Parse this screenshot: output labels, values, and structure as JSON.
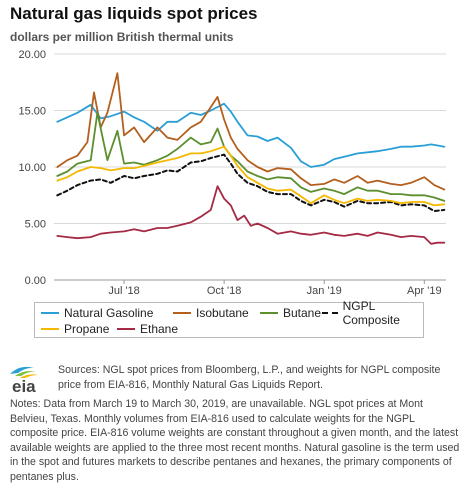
{
  "page": {
    "title": "Natural gas liquids spot prices",
    "subtitle": "dollars per million British thermal units",
    "sources": "Sources: NGL spot prices from Bloomberg, L.P., and weights for NGPL composite price from EIA-816, Monthly Natural Gas Liquids Report.",
    "notes": "Notes: Data from March 19 to March 30, 2019, are unavailable. NGL spot prices at Mont Belvieu, Texas. Monthly volumes from EIA-816 used to calculate weights for the NGPL composite price. EIA-816 volume weights are constant throughout a given month, and the latest available weights are applied to the three most recent months. Natural gasoline is the term used in the spot and futures markets to describe pentanes and hexanes, the primary components of pentanes plus.",
    "logo_text": "eia"
  },
  "chart_data": {
    "type": "line",
    "x_ticks": [
      "Jul '18",
      "Oct '18",
      "Jan '19",
      "Apr '19"
    ],
    "x_tick_months": [
      3,
      6,
      9,
      12
    ],
    "y_ticks": [
      "0.00",
      "5.00",
      "10.00",
      "15.00",
      "20.00"
    ],
    "ylim": [
      0,
      20
    ],
    "grid": "horizontal",
    "legend_position": "bottom",
    "x_month_range": [
      0.9,
      12.65
    ],
    "series": [
      {
        "name": "Natural Gasoline",
        "color": "#2a9fd6",
        "dashed": false,
        "x": [
          1.0,
          1.3,
          1.6,
          2.0,
          2.3,
          2.6,
          3.0,
          3.3,
          3.6,
          4.0,
          4.3,
          4.6,
          5.0,
          5.3,
          5.6,
          6.0,
          6.2,
          6.4,
          6.7,
          7.0,
          7.3,
          7.6,
          8.0,
          8.3,
          8.6,
          9.0,
          9.3,
          9.6,
          10.0,
          10.3,
          10.6,
          11.0,
          11.3,
          11.6,
          12.0,
          12.2,
          12.4,
          12.6
        ],
        "y": [
          14.0,
          14.4,
          14.8,
          15.5,
          14.3,
          14.5,
          14.9,
          14.4,
          14.0,
          13.2,
          14.0,
          14.0,
          14.8,
          14.6,
          15.0,
          15.6,
          14.9,
          14.0,
          12.8,
          12.7,
          12.3,
          12.6,
          11.7,
          10.5,
          10.0,
          10.2,
          10.7,
          10.9,
          11.2,
          11.3,
          11.4,
          11.6,
          11.8,
          11.8,
          11.9,
          12.0,
          11.9,
          11.8
        ]
      },
      {
        "name": "Isobutane",
        "color": "#b35f1e",
        "dashed": false,
        "x": [
          1.0,
          1.3,
          1.6,
          1.9,
          2.1,
          2.3,
          2.5,
          2.8,
          3.0,
          3.3,
          3.6,
          4.0,
          4.3,
          4.6,
          5.0,
          5.3,
          5.6,
          5.8,
          6.0,
          6.2,
          6.4,
          6.7,
          7.0,
          7.3,
          7.6,
          8.0,
          8.3,
          8.6,
          9.0,
          9.3,
          9.6,
          10.0,
          10.3,
          10.6,
          11.0,
          11.3,
          11.6,
          12.0,
          12.3,
          12.6
        ],
        "y": [
          10.0,
          10.6,
          11.0,
          12.2,
          16.6,
          13.5,
          14.8,
          18.3,
          12.8,
          13.5,
          12.2,
          13.5,
          12.6,
          12.4,
          13.5,
          14.0,
          15.3,
          16.2,
          14.2,
          12.6,
          11.6,
          10.6,
          10.0,
          9.6,
          9.9,
          9.8,
          9.0,
          8.4,
          8.5,
          8.9,
          8.6,
          9.2,
          8.6,
          8.8,
          8.5,
          8.4,
          8.6,
          9.1,
          8.4,
          8.0
        ]
      },
      {
        "name": "Butane",
        "color": "#5c8f2e",
        "dashed": false,
        "x": [
          1.0,
          1.3,
          1.6,
          2.0,
          2.2,
          2.5,
          2.8,
          3.0,
          3.3,
          3.6,
          4.0,
          4.3,
          4.6,
          5.0,
          5.3,
          5.6,
          5.8,
          6.0,
          6.2,
          6.4,
          6.7,
          7.0,
          7.3,
          7.6,
          8.0,
          8.3,
          8.6,
          9.0,
          9.3,
          9.6,
          10.0,
          10.3,
          10.6,
          11.0,
          11.3,
          11.6,
          12.0,
          12.3,
          12.6
        ],
        "y": [
          9.2,
          9.6,
          10.3,
          10.6,
          14.8,
          10.6,
          13.2,
          10.3,
          10.4,
          10.2,
          10.6,
          11.0,
          11.6,
          12.6,
          12.0,
          12.2,
          13.4,
          11.8,
          11.0,
          10.5,
          9.6,
          9.2,
          8.9,
          9.1,
          9.0,
          8.2,
          7.8,
          8.1,
          7.9,
          7.6,
          8.2,
          7.9,
          7.9,
          7.6,
          7.6,
          7.5,
          7.5,
          7.3,
          7.0
        ]
      },
      {
        "name": "NGPL Composite",
        "color": "#111111",
        "dashed": true,
        "x": [
          1.0,
          1.3,
          1.6,
          2.0,
          2.3,
          2.6,
          3.0,
          3.3,
          3.6,
          4.0,
          4.3,
          4.6,
          5.0,
          5.3,
          5.6,
          6.0,
          6.2,
          6.4,
          6.7,
          7.0,
          7.3,
          7.6,
          8.0,
          8.3,
          8.6,
          9.0,
          9.3,
          9.6,
          10.0,
          10.3,
          10.6,
          11.0,
          11.3,
          11.6,
          12.0,
          12.3,
          12.6
        ],
        "y": [
          7.5,
          7.9,
          8.4,
          8.8,
          8.9,
          8.6,
          9.2,
          9.0,
          9.2,
          9.4,
          9.7,
          9.6,
          10.4,
          10.5,
          10.8,
          11.1,
          10.3,
          9.4,
          8.6,
          8.3,
          7.8,
          7.6,
          7.6,
          7.0,
          6.6,
          7.1,
          6.9,
          6.5,
          7.0,
          6.8,
          6.8,
          6.9,
          6.6,
          6.7,
          6.6,
          6.1,
          6.2
        ]
      },
      {
        "name": "Propane",
        "color": "#f5b800",
        "dashed": false,
        "x": [
          1.0,
          1.3,
          1.6,
          2.0,
          2.3,
          2.6,
          3.0,
          3.3,
          3.6,
          4.0,
          4.3,
          4.6,
          5.0,
          5.3,
          5.6,
          6.0,
          6.2,
          6.4,
          6.7,
          7.0,
          7.3,
          7.6,
          8.0,
          8.3,
          8.6,
          9.0,
          9.3,
          9.6,
          10.0,
          10.3,
          10.6,
          11.0,
          11.3,
          11.6,
          12.0,
          12.3,
          12.6
        ],
        "y": [
          8.8,
          9.1,
          9.6,
          10.0,
          9.9,
          9.7,
          9.9,
          9.9,
          10.1,
          10.4,
          10.6,
          10.8,
          11.2,
          11.2,
          11.4,
          11.8,
          11.0,
          10.1,
          9.1,
          8.6,
          8.1,
          7.9,
          8.0,
          7.4,
          6.8,
          7.5,
          7.1,
          6.8,
          7.2,
          7.0,
          7.1,
          7.0,
          6.8,
          6.9,
          6.9,
          6.6,
          6.7
        ]
      },
      {
        "name": "Ethane",
        "color": "#a52a45",
        "dashed": false,
        "x": [
          1.0,
          1.3,
          1.6,
          2.0,
          2.3,
          2.6,
          3.0,
          3.3,
          3.6,
          4.0,
          4.3,
          4.6,
          5.0,
          5.3,
          5.6,
          5.8,
          6.0,
          6.2,
          6.4,
          6.6,
          6.8,
          7.0,
          7.3,
          7.6,
          8.0,
          8.3,
          8.6,
          9.0,
          9.3,
          9.6,
          10.0,
          10.3,
          10.6,
          11.0,
          11.3,
          11.6,
          12.0,
          12.2,
          12.4,
          12.6
        ],
        "y": [
          3.9,
          3.8,
          3.7,
          3.8,
          4.1,
          4.2,
          4.3,
          4.5,
          4.3,
          4.6,
          4.6,
          4.8,
          5.1,
          5.6,
          6.2,
          8.3,
          7.2,
          6.6,
          5.3,
          5.7,
          4.8,
          5.0,
          4.6,
          4.1,
          4.3,
          4.1,
          4.0,
          4.2,
          4.0,
          3.9,
          4.1,
          3.9,
          4.2,
          4.0,
          3.8,
          3.9,
          3.8,
          3.2,
          3.3,
          3.3
        ]
      }
    ]
  }
}
